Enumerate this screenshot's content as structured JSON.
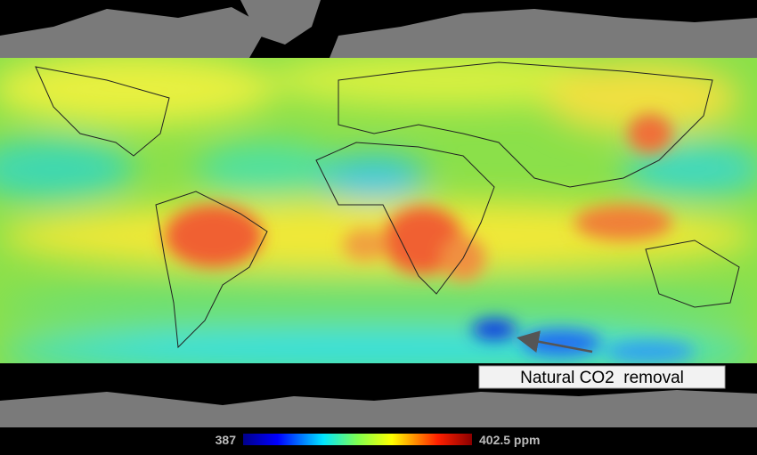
{
  "annotation": "Natural CO2  removal",
  "colorbar": {
    "min_label": "387",
    "max_label": "402.5 ppm"
  }
}
